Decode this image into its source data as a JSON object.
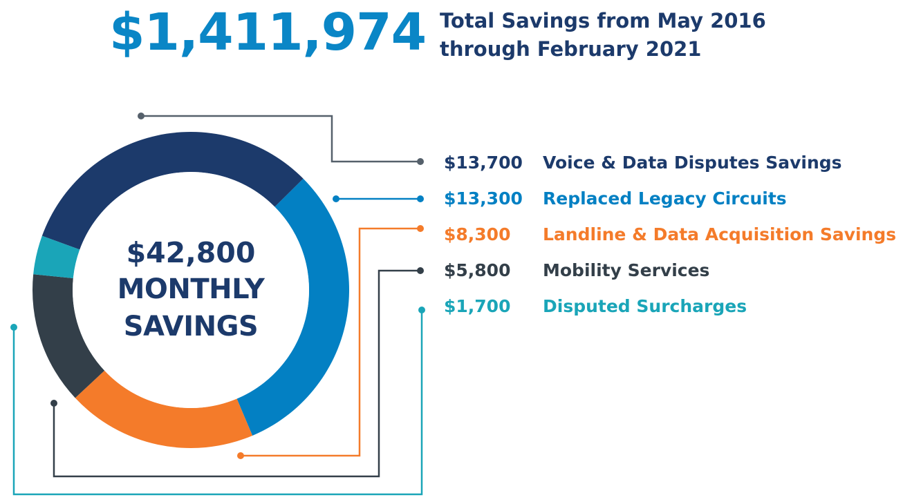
{
  "headline": {
    "amount": "$1,411,974",
    "caption_line1": "Total Savings from May 2016",
    "caption_line2": "through February 2021"
  },
  "center": {
    "amount": "$42,800",
    "line1": "MONTHLY",
    "line2": "SAVINGS"
  },
  "chart_data": {
    "type": "pie",
    "total": 42800,
    "series": [
      {
        "name": "Voice & Data Disputes Savings",
        "display_value": "$13,700",
        "value": 13700,
        "color": "#1c3a6b"
      },
      {
        "name": "Replaced Legacy Circuits",
        "display_value": "$13,300",
        "value": 13300,
        "color": "#0380c3"
      },
      {
        "name": "Landline & Data Acquisition Savings",
        "display_value": "$8,300",
        "value": 8300,
        "color": "#f47b2a"
      },
      {
        "name": "Mobility Services",
        "display_value": "$5,800",
        "value": 5800,
        "color": "#333f49"
      },
      {
        "name": "Disputed Surcharges",
        "display_value": "$1,700",
        "value": 1700,
        "color": "#1aa5b8"
      }
    ]
  }
}
